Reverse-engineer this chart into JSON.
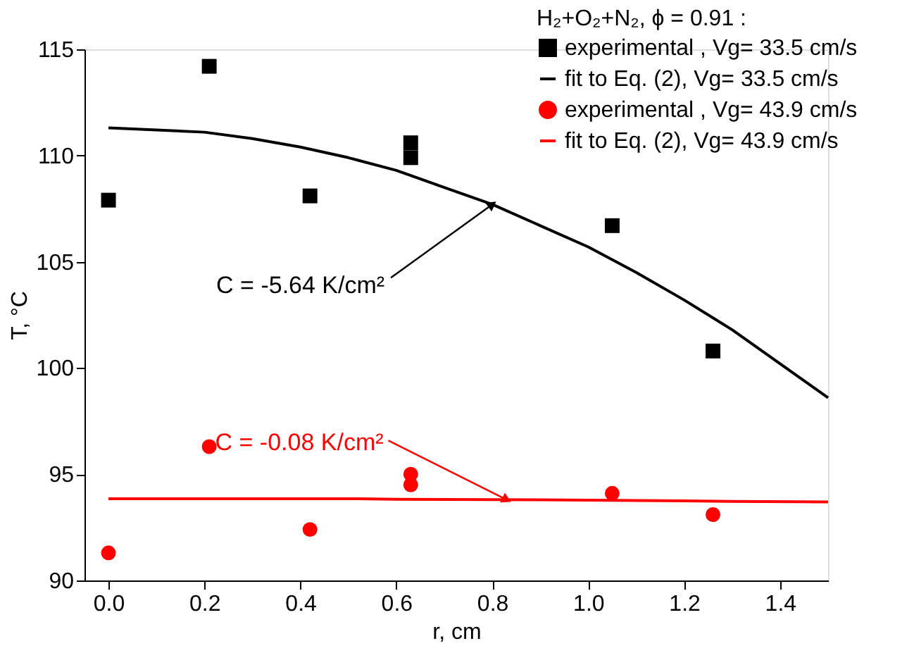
{
  "chart_data": {
    "type": "scatter",
    "xlabel": "r, cm",
    "ylabel": "T, °C",
    "legend_title": "H₂+O₂+N₂, ϕ = 0.91 :",
    "xlim": [
      -0.05,
      1.5
    ],
    "ylim": [
      90,
      115
    ],
    "xticks": [
      {
        "value": 0,
        "label": "0.0"
      },
      0.2,
      0.4,
      0.6,
      0.8,
      {
        "value": 1,
        "label": "1.0"
      },
      1.2,
      1.4
    ],
    "yticks": [
      90,
      95,
      100,
      105,
      110,
      115
    ],
    "grid": false,
    "legend": "top right",
    "series": [
      {
        "name": "experimental  ,  Vg= 33.5 cm/s",
        "type": "scatter",
        "marker": "square",
        "color": "#000000",
        "x": [
          0,
          0.21,
          0.42,
          0.63,
          0.63,
          1.05,
          1.26
        ],
        "values": [
          107.9,
          114.2,
          108.1,
          110.6,
          109.9,
          106.7,
          100.8
        ]
      },
      {
        "name": "fit to Eq. (2),   Vg= 33.5 cm/s",
        "type": "line",
        "marker": "none",
        "color": "#000000",
        "x": [
          0,
          0.1,
          0.2,
          0.3,
          0.4,
          0.5,
          0.6,
          0.7,
          0.8,
          0.9,
          1.0,
          1.1,
          1.2,
          1.3,
          1.4,
          1.5
        ],
        "values": [
          111.3,
          111.2,
          111.1,
          110.8,
          110.4,
          109.9,
          109.3,
          108.5,
          107.7,
          106.7,
          105.7,
          104.5,
          103.2,
          101.8,
          100.2,
          98.6
        ]
      },
      {
        "name": "experimental  ,  Vg= 43.9 cm/s",
        "type": "scatter",
        "marker": "circle",
        "color": "#ff0000",
        "x": [
          0,
          0.21,
          0.42,
          0.63,
          0.63,
          1.05,
          1.26
        ],
        "values": [
          91.3,
          96.3,
          92.4,
          95.0,
          94.5,
          94.1,
          93.1
        ]
      },
      {
        "name": "fit to Eq. (2),   Vg= 43.9 cm/s",
        "type": "line",
        "marker": "none",
        "color": "#ff0000",
        "x": [
          0,
          0.5,
          0.6,
          0.9,
          1.0,
          1.2,
          1.3,
          1.5
        ],
        "values": [
          93.85,
          93.85,
          93.82,
          93.8,
          93.78,
          93.75,
          93.72,
          93.7
        ]
      }
    ],
    "annotations": [
      {
        "text": "C = -5.64 K/cm²",
        "x": 0.8,
        "y": 107.7
      },
      {
        "text": "C = -0.08 K/cm²",
        "x": 0.83,
        "y": 93.8
      }
    ]
  }
}
